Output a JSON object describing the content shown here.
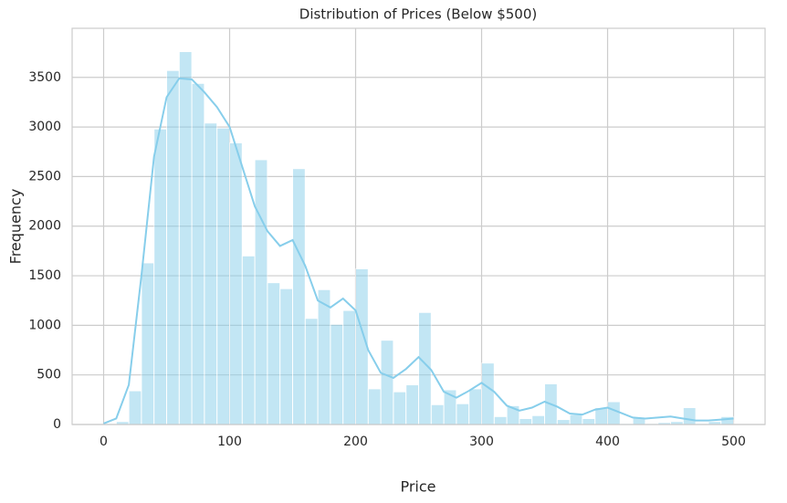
{
  "chart_data": {
    "type": "histogram",
    "title": "Distribution of Prices (Below $500)",
    "x_label": "Price",
    "y_label": "Frequency",
    "bins": [
      10,
      20,
      30,
      40,
      50,
      60,
      70,
      80,
      90,
      100,
      110,
      120,
      130,
      140,
      150,
      160,
      170,
      180,
      190,
      200,
      210,
      220,
      230,
      240,
      250,
      260,
      270,
      280,
      290,
      300,
      310,
      320,
      330,
      340,
      350,
      360,
      370,
      380,
      390,
      400,
      410,
      420,
      430,
      440,
      450,
      460,
      470,
      480,
      490,
      500
    ],
    "counts": [
      30,
      340,
      1630,
      2980,
      3570,
      3760,
      3440,
      3040,
      2990,
      2840,
      1700,
      2670,
      1430,
      1370,
      2580,
      1070,
      1360,
      1010,
      1150,
      1570,
      360,
      850,
      330,
      400,
      1130,
      200,
      350,
      210,
      360,
      620,
      80,
      190,
      60,
      90,
      410,
      50,
      100,
      60,
      170,
      230,
      10,
      70,
      10,
      20,
      30,
      170,
      10,
      30,
      80
    ],
    "color": "#87ceeb",
    "kde": {
      "x": [
        0,
        10,
        20,
        30,
        40,
        50,
        60,
        70,
        80,
        90,
        100,
        110,
        120,
        130,
        140,
        150,
        160,
        170,
        180,
        190,
        200,
        210,
        220,
        230,
        240,
        250,
        260,
        270,
        280,
        290,
        300,
        310,
        320,
        330,
        340,
        350,
        360,
        370,
        380,
        390,
        400,
        410,
        420,
        430,
        440,
        450,
        460,
        470,
        480,
        490,
        500
      ],
      "y": [
        10,
        60,
        400,
        1500,
        2700,
        3300,
        3490,
        3480,
        3350,
        3200,
        3000,
        2600,
        2200,
        1950,
        1800,
        1860,
        1600,
        1250,
        1180,
        1270,
        1150,
        750,
        520,
        470,
        560,
        680,
        550,
        330,
        270,
        340,
        420,
        330,
        190,
        140,
        170,
        230,
        180,
        110,
        100,
        150,
        170,
        120,
        70,
        60,
        70,
        80,
        60,
        40,
        40,
        50,
        60
      ]
    },
    "xlim": [
      -25,
      525
    ],
    "ylim": [
      0,
      3995
    ],
    "xticks": [
      0,
      100,
      200,
      300,
      400,
      500
    ],
    "yticks": [
      0,
      500,
      1000,
      1500,
      2000,
      2500,
      3000,
      3500
    ],
    "grid": true
  }
}
